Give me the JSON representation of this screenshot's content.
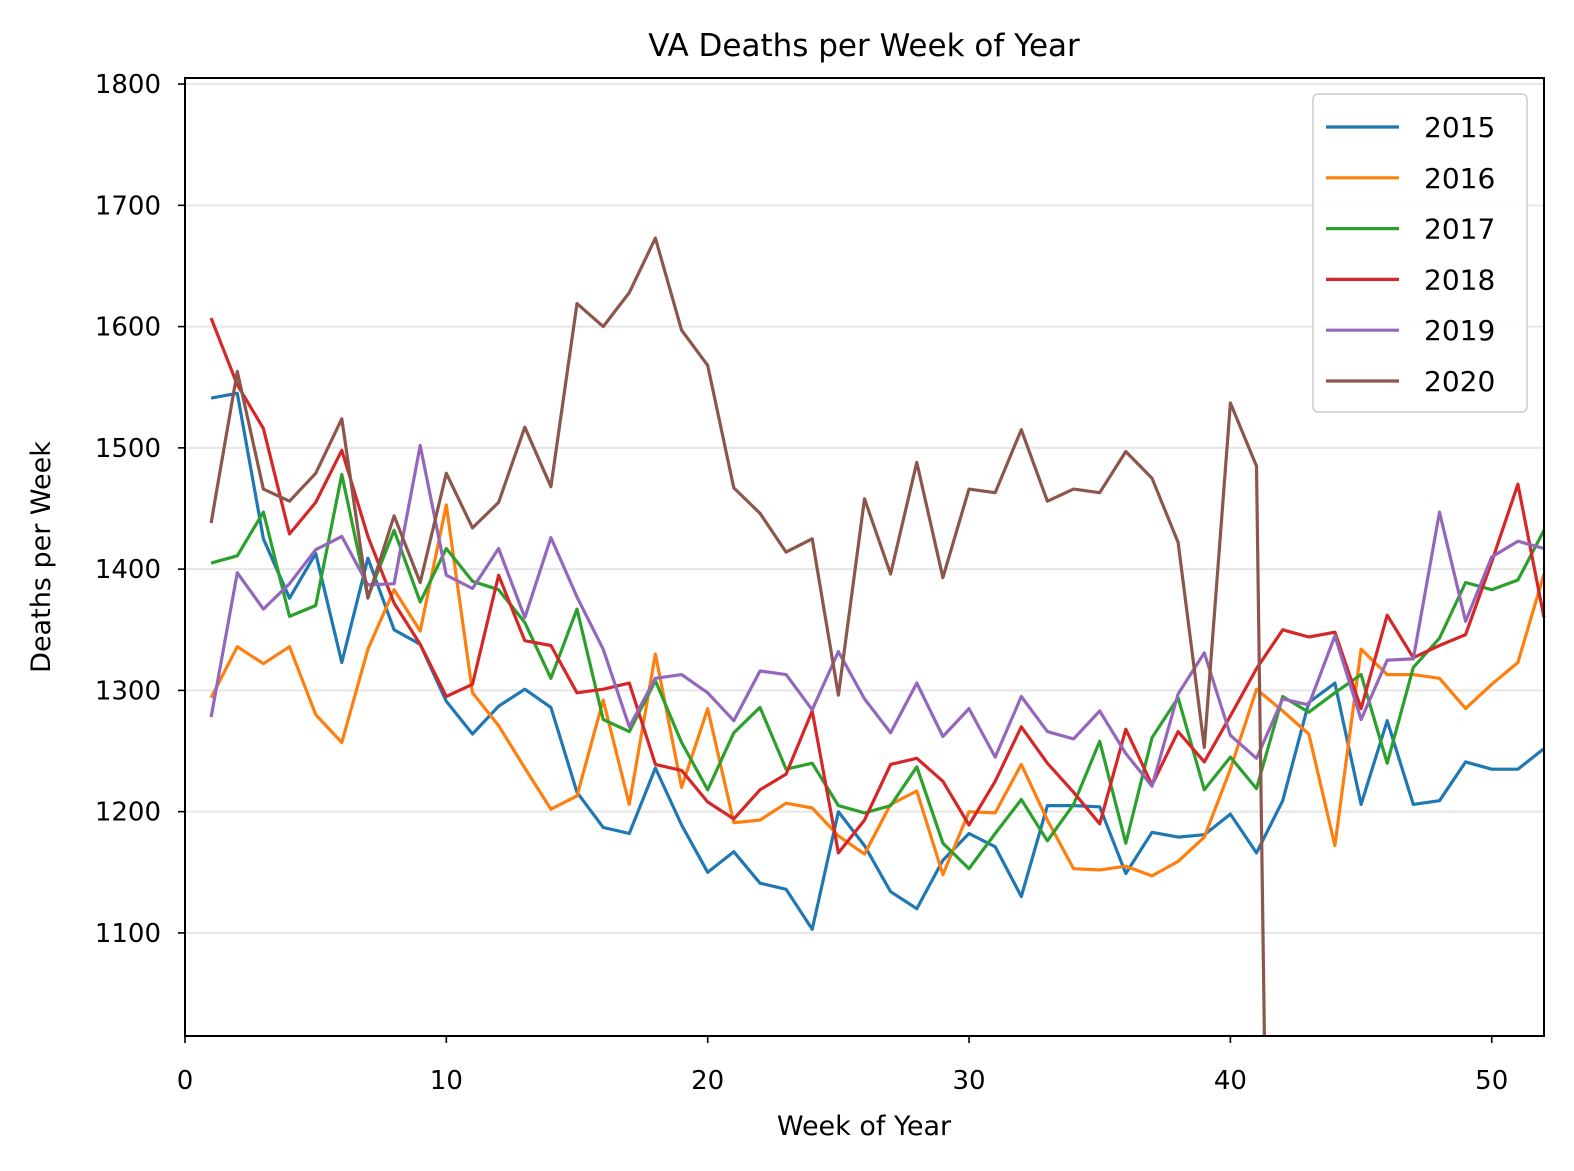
{
  "chart_data": {
    "type": "line",
    "title": "VA Deaths per Week of Year",
    "xlabel": "Week of Year",
    "ylabel": "Deaths per Week",
    "xlim": [
      0,
      52
    ],
    "ylim": [
      1015,
      1805
    ],
    "x_ticks": [
      0,
      10,
      20,
      30,
      40,
      50
    ],
    "y_ticks": [
      1100,
      1200,
      1300,
      1400,
      1500,
      1600,
      1700,
      1800
    ],
    "grid": "horizontal",
    "legend_position": "top-right",
    "series": [
      {
        "name": "2015",
        "color": "#1f77b4",
        "x": [
          1,
          2,
          3,
          4,
          5,
          6,
          7,
          8,
          9,
          10,
          11,
          12,
          13,
          14,
          15,
          16,
          17,
          18,
          19,
          20,
          21,
          22,
          23,
          24,
          25,
          26,
          27,
          28,
          29,
          30,
          31,
          32,
          33,
          34,
          35,
          36,
          37,
          38,
          39,
          40,
          41,
          42,
          43,
          44,
          45,
          46,
          47,
          48,
          49,
          50,
          51,
          52
        ],
        "values": [
          1541,
          1545,
          1425,
          1376,
          1413,
          1323,
          1409,
          1350,
          1338,
          1291,
          1264,
          1287,
          1301,
          1286,
          1216,
          1187,
          1182,
          1236,
          1189,
          1150,
          1167,
          1141,
          1136,
          1103,
          1200,
          1172,
          1134,
          1120,
          1160,
          1182,
          1171,
          1130,
          1205,
          1205,
          1204,
          1149,
          1183,
          1179,
          1181,
          1198,
          1166,
          1209,
          1290,
          1306,
          1206,
          1275,
          1206,
          1209,
          1241,
          1235,
          1235,
          1252
        ]
      },
      {
        "name": "2016",
        "color": "#ff7f0e",
        "x": [
          1,
          2,
          3,
          4,
          5,
          6,
          7,
          8,
          9,
          10,
          11,
          12,
          13,
          14,
          15,
          16,
          17,
          18,
          19,
          20,
          21,
          22,
          23,
          24,
          25,
          26,
          27,
          28,
          29,
          30,
          31,
          32,
          33,
          34,
          35,
          36,
          37,
          38,
          39,
          40,
          41,
          42,
          43,
          44,
          45,
          46,
          47,
          48,
          49,
          50,
          51,
          52
        ],
        "values": [
          1294,
          1336,
          1322,
          1336,
          1280,
          1257,
          1334,
          1383,
          1349,
          1453,
          1298,
          1271,
          1236,
          1202,
          1213,
          1292,
          1206,
          1330,
          1220,
          1285,
          1191,
          1193,
          1207,
          1203,
          1180,
          1165,
          1206,
          1217,
          1148,
          1200,
          1199,
          1239,
          1193,
          1153,
          1152,
          1155,
          1147,
          1159,
          1179,
          1235,
          1301,
          1283,
          1264,
          1172,
          1334,
          1313,
          1313,
          1310,
          1285,
          1305,
          1323,
          1396
        ]
      },
      {
        "name": "2017",
        "color": "#2ca02c",
        "x": [
          1,
          2,
          3,
          4,
          5,
          6,
          7,
          8,
          9,
          10,
          11,
          12,
          13,
          14,
          15,
          16,
          17,
          18,
          19,
          20,
          21,
          22,
          23,
          24,
          25,
          26,
          27,
          28,
          29,
          30,
          31,
          32,
          33,
          34,
          35,
          36,
          37,
          38,
          39,
          40,
          41,
          42,
          43,
          44,
          45,
          46,
          47,
          48,
          49,
          50,
          51,
          52
        ],
        "values": [
          1405,
          1411,
          1447,
          1361,
          1370,
          1478,
          1377,
          1432,
          1373,
          1417,
          1390,
          1383,
          1356,
          1310,
          1367,
          1276,
          1266,
          1308,
          1257,
          1218,
          1265,
          1286,
          1235,
          1240,
          1205,
          1199,
          1205,
          1237,
          1174,
          1153,
          1182,
          1210,
          1176,
          1206,
          1258,
          1174,
          1261,
          1294,
          1218,
          1245,
          1219,
          1295,
          1282,
          1298,
          1313,
          1240,
          1319,
          1343,
          1389,
          1383,
          1391,
          1432
        ]
      },
      {
        "name": "2018",
        "color": "#d62728",
        "x": [
          1,
          2,
          3,
          4,
          5,
          6,
          7,
          8,
          9,
          10,
          11,
          12,
          13,
          14,
          15,
          16,
          17,
          18,
          19,
          20,
          21,
          22,
          23,
          24,
          25,
          26,
          27,
          28,
          29,
          30,
          31,
          32,
          33,
          34,
          35,
          36,
          37,
          38,
          39,
          40,
          41,
          42,
          43,
          44,
          45,
          46,
          47,
          48,
          49,
          50,
          51,
          52
        ],
        "values": [
          1607,
          1552,
          1516,
          1429,
          1455,
          1498,
          1427,
          1372,
          1338,
          1295,
          1305,
          1395,
          1341,
          1337,
          1298,
          1301,
          1306,
          1239,
          1234,
          1208,
          1194,
          1218,
          1231,
          1283,
          1166,
          1193,
          1239,
          1244,
          1225,
          1189,
          1225,
          1270,
          1240,
          1216,
          1190,
          1268,
          1222,
          1266,
          1241,
          1279,
          1318,
          1350,
          1344,
          1348,
          1285,
          1362,
          1327,
          1337,
          1346,
          1406,
          1470,
          1360
        ]
      },
      {
        "name": "2019",
        "color": "#9467bd",
        "x": [
          1,
          2,
          3,
          4,
          5,
          6,
          7,
          8,
          9,
          10,
          11,
          12,
          13,
          14,
          15,
          16,
          17,
          18,
          19,
          20,
          21,
          22,
          23,
          24,
          25,
          26,
          27,
          28,
          29,
          30,
          31,
          32,
          33,
          34,
          35,
          36,
          37,
          38,
          39,
          40,
          41,
          42,
          43,
          44,
          45,
          46,
          47,
          48,
          49,
          50,
          51,
          52
        ],
        "values": [
          1278,
          1397,
          1367,
          1388,
          1416,
          1427,
          1387,
          1388,
          1502,
          1395,
          1384,
          1417,
          1360,
          1426,
          1377,
          1334,
          1270,
          1310,
          1313,
          1298,
          1275,
          1316,
          1313,
          1284,
          1332,
          1293,
          1265,
          1306,
          1262,
          1285,
          1245,
          1295,
          1266,
          1260,
          1283,
          1248,
          1221,
          1297,
          1331,
          1263,
          1244,
          1293,
          1288,
          1345,
          1276,
          1325,
          1326,
          1447,
          1357,
          1410,
          1423,
          1417
        ]
      },
      {
        "name": "2020",
        "color": "#8c564b",
        "x": [
          1,
          2,
          3,
          4,
          5,
          6,
          7,
          8,
          9,
          10,
          11,
          12,
          13,
          14,
          15,
          16,
          17,
          18,
          19,
          20,
          21,
          22,
          23,
          24,
          25,
          26,
          27,
          28,
          29,
          30,
          31,
          32,
          33,
          34,
          35,
          36,
          37,
          38,
          39,
          40,
          41,
          41.3
        ],
        "values": [
          1438,
          1563,
          1466,
          1456,
          1479,
          1524,
          1376,
          1444,
          1389,
          1479,
          1434,
          1455,
          1517,
          1468,
          1619,
          1600,
          1628,
          1673,
          1597,
          1568,
          1467,
          1446,
          1414,
          1425,
          1296,
          1458,
          1396,
          1488,
          1393,
          1466,
          1463,
          1515,
          1456,
          1466,
          1463,
          1497,
          1475,
          1422,
          1253,
          1537,
          1485,
          1015
        ]
      }
    ]
  }
}
